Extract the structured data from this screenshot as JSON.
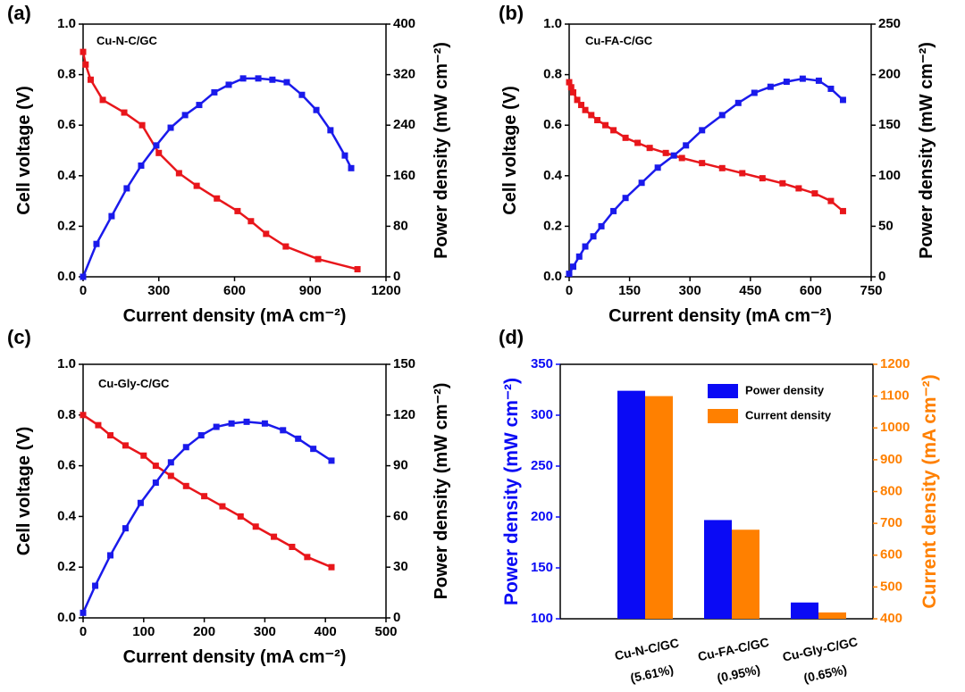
{
  "chart_data": [
    {
      "type": "line",
      "panel_label": "(a)",
      "title": "Cu-N-C/GC",
      "xlabel": "Current density (mA cm⁻²)",
      "ylabel": "Cell voltage (V)",
      "y2label": "Power density (mW cm⁻²)",
      "xlim": [
        0,
        1200
      ],
      "xticks": [
        0,
        300,
        600,
        900,
        1200
      ],
      "ylim": [
        0,
        1
      ],
      "yticks": [
        {
          "value": 0,
          "label": "0.0"
        },
        0.2,
        0.4,
        0.6,
        0.8,
        {
          "value": 1,
          "label": "1.0"
        }
      ],
      "y2lim": [
        0,
        400
      ],
      "y2ticks": [
        0,
        80,
        160,
        240,
        320,
        400
      ],
      "series": [
        {
          "color": "#e8161b",
          "axis": "y",
          "x": [
            0,
            10,
            30,
            78,
            163,
            234,
            300,
            380,
            450,
            530,
            612,
            665,
            725,
            803,
            931,
            1087
          ],
          "values": [
            0.89,
            0.84,
            0.78,
            0.7,
            0.65,
            0.6,
            0.49,
            0.41,
            0.36,
            0.31,
            0.26,
            0.22,
            0.17,
            0.12,
            0.07,
            0.03
          ]
        },
        {
          "color": "#1a1aeb",
          "axis": "y2",
          "x": [
            0,
            53,
            113,
            173,
            230,
            290,
            347,
            404,
            460,
            520,
            577,
            634,
            694,
            750,
            807,
            867,
            924,
            980,
            1037,
            1062
          ],
          "values": [
            0,
            52,
            96,
            140,
            176,
            208,
            236,
            256,
            272,
            292,
            304,
            314,
            314,
            312,
            308,
            288,
            264,
            232,
            192,
            172
          ]
        }
      ]
    },
    {
      "type": "line",
      "panel_label": "(b)",
      "title": "Cu-FA-C/GC",
      "xlabel": "Current density (mA cm⁻²)",
      "ylabel": "Cell voltage (V)",
      "y2label": "Power density (mW cm⁻²)",
      "xlim": [
        0,
        750
      ],
      "xticks": [
        0,
        150,
        300,
        450,
        600,
        750
      ],
      "ylim": [
        0,
        1
      ],
      "yticks": [
        {
          "value": 0,
          "label": "0.0"
        },
        0.2,
        0.4,
        0.6,
        0.8,
        {
          "value": 1,
          "label": "1.0"
        }
      ],
      "y2lim": [
        0,
        250
      ],
      "y2ticks": [
        0,
        50,
        100,
        150,
        200,
        250
      ],
      "series": [
        {
          "color": "#e8161b",
          "axis": "y",
          "x": [
            0,
            5,
            10,
            20,
            30,
            40,
            55,
            70,
            90,
            110,
            140,
            170,
            200,
            240,
            280,
            330,
            380,
            430,
            480,
            530,
            570,
            610,
            650,
            680
          ],
          "values": [
            0.77,
            0.75,
            0.73,
            0.7,
            0.68,
            0.66,
            0.64,
            0.62,
            0.6,
            0.58,
            0.55,
            0.53,
            0.51,
            0.49,
            0.47,
            0.45,
            0.43,
            0.41,
            0.39,
            0.37,
            0.35,
            0.33,
            0.3,
            0.26
          ]
        },
        {
          "color": "#1a1aeb",
          "axis": "y2",
          "x": [
            0,
            10,
            25,
            40,
            60,
            80,
            110,
            140,
            180,
            220,
            260,
            290,
            330,
            380,
            420,
            460,
            500,
            540,
            580,
            620,
            650,
            680
          ],
          "values": [
            3,
            10,
            20,
            30,
            40,
            50,
            65,
            78,
            93,
            108,
            120,
            130,
            145,
            160,
            172,
            182,
            188,
            193,
            196,
            194,
            186,
            175
          ]
        }
      ]
    },
    {
      "type": "line",
      "panel_label": "(c)",
      "title": "Cu-Gly-C/GC",
      "xlabel": "Current density (mA cm⁻²)",
      "ylabel": "Cell voltage (V)",
      "y2label": "Power density (mW cm⁻²)",
      "xlim": [
        0,
        500
      ],
      "xticks": [
        0,
        100,
        200,
        300,
        400,
        500
      ],
      "ylim": [
        0,
        1
      ],
      "yticks": [
        {
          "value": 0,
          "label": "0.0"
        },
        0.2,
        0.4,
        0.6,
        0.8,
        {
          "value": 1,
          "label": "1.0"
        }
      ],
      "y2lim": [
        0,
        150
      ],
      "y2ticks": [
        0,
        30,
        60,
        90,
        120,
        150
      ],
      "series": [
        {
          "color": "#e8161b",
          "axis": "y",
          "x": [
            0,
            25,
            45,
            70,
            100,
            120,
            145,
            170,
            200,
            230,
            260,
            285,
            315,
            345,
            370,
            410
          ],
          "values": [
            0.8,
            0.76,
            0.72,
            0.68,
            0.64,
            0.6,
            0.56,
            0.52,
            0.48,
            0.44,
            0.4,
            0.36,
            0.32,
            0.28,
            0.24,
            0.2
          ]
        },
        {
          "color": "#1a1aeb",
          "axis": "y2",
          "x": [
            0,
            20,
            45,
            70,
            95,
            120,
            145,
            170,
            195,
            220,
            245,
            270,
            300,
            330,
            355,
            380,
            410
          ],
          "values": [
            3,
            19,
            37,
            53,
            68,
            80,
            92,
            101,
            108,
            113,
            115,
            116,
            115,
            111,
            106,
            100,
            93
          ]
        }
      ]
    },
    {
      "type": "bar",
      "panel_label": "(d)",
      "ylabel": "Power density (mW cm⁻²)",
      "y2label": "Current density (mA cm⁻²)",
      "categories": [
        "Cu-N-C/GC (5.61%)",
        "Cu-FA-C/GC (0.95%)",
        "Cu-Gly-C/GC (0.65%)"
      ],
      "ylim": [
        100,
        350
      ],
      "yticks": [
        100,
        150,
        200,
        250,
        300,
        350
      ],
      "y2lim": [
        400,
        1200
      ],
      "y2ticks": [
        400,
        500,
        600,
        700,
        800,
        900,
        1000,
        1100,
        1200
      ],
      "legend": "upper right",
      "series": [
        {
          "name": "Power density",
          "color": "#0a0af5",
          "axis": "y",
          "values": [
            324,
            197,
            116
          ]
        },
        {
          "name": "Current density",
          "color": "#ff8000",
          "axis": "y2",
          "values": [
            1100,
            680,
            420
          ]
        }
      ]
    }
  ]
}
